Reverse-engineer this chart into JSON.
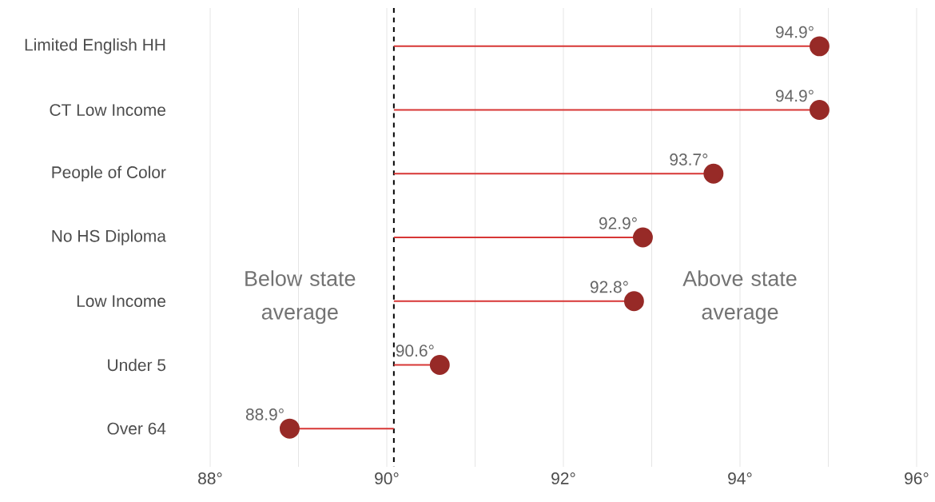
{
  "chart_data": {
    "type": "lollipop",
    "orientation": "horizontal",
    "categories": [
      "Limited English HH",
      "CT Low Income",
      "People of Color",
      "No HS Diploma",
      "Low Income",
      "Under 5",
      "Over 64"
    ],
    "series": [
      {
        "color": "#972a27",
        "values": [
          94.9,
          94.9,
          93.7,
          92.9,
          92.8,
          90.6,
          88.9
        ],
        "value_labels": [
          "94.9°",
          "94.9°",
          "93.7°",
          "92.9°",
          "92.8°",
          "90.6°",
          "88.9°"
        ]
      }
    ],
    "marker": "circle",
    "xlim": [
      88,
      96
    ],
    "xticks": [
      {
        "value": 88,
        "label": "88°"
      },
      {
        "value": 89,
        "label": null
      },
      {
        "value": 90,
        "label": "90°"
      },
      {
        "value": 91,
        "label": null
      },
      {
        "value": 92,
        "label": "92°"
      },
      {
        "value": 93,
        "label": null
      },
      {
        "value": 94,
        "label": "94°"
      },
      {
        "value": 95,
        "label": null
      },
      {
        "value": 96,
        "label": "96°"
      }
    ],
    "grid": "x",
    "ref_lines": [
      {
        "axis": "x",
        "value": 90.08,
        "color": "#000000",
        "line_style": "dashed"
      }
    ],
    "annotations": [
      "Below state average",
      "Above state average"
    ]
  }
}
